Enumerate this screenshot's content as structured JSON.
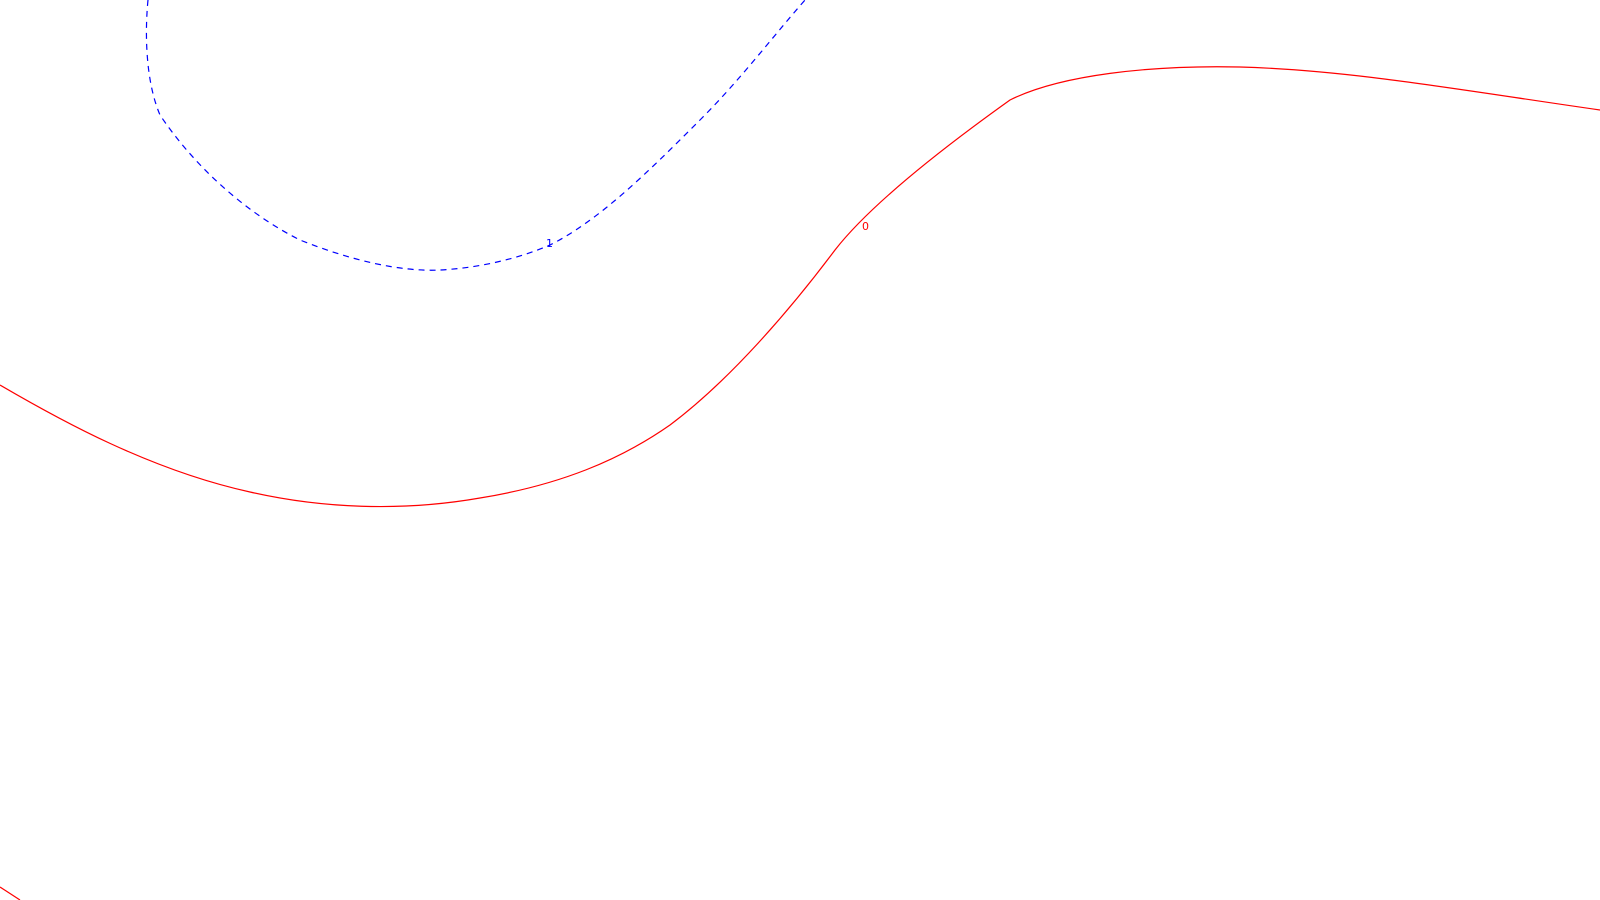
{
  "chart_data": {
    "type": "contour",
    "title": "",
    "xlabel": "",
    "ylabel": "",
    "grid": false,
    "legend": "none",
    "contours": [
      {
        "level": "1",
        "label": "1",
        "color": "#0000ff",
        "style": "dashed"
      },
      {
        "level": "0",
        "label": "0",
        "color": "#ff0000",
        "style": "solid"
      },
      {
        "level": "0",
        "label": "",
        "color": "#ff0000",
        "style": "solid"
      }
    ]
  }
}
